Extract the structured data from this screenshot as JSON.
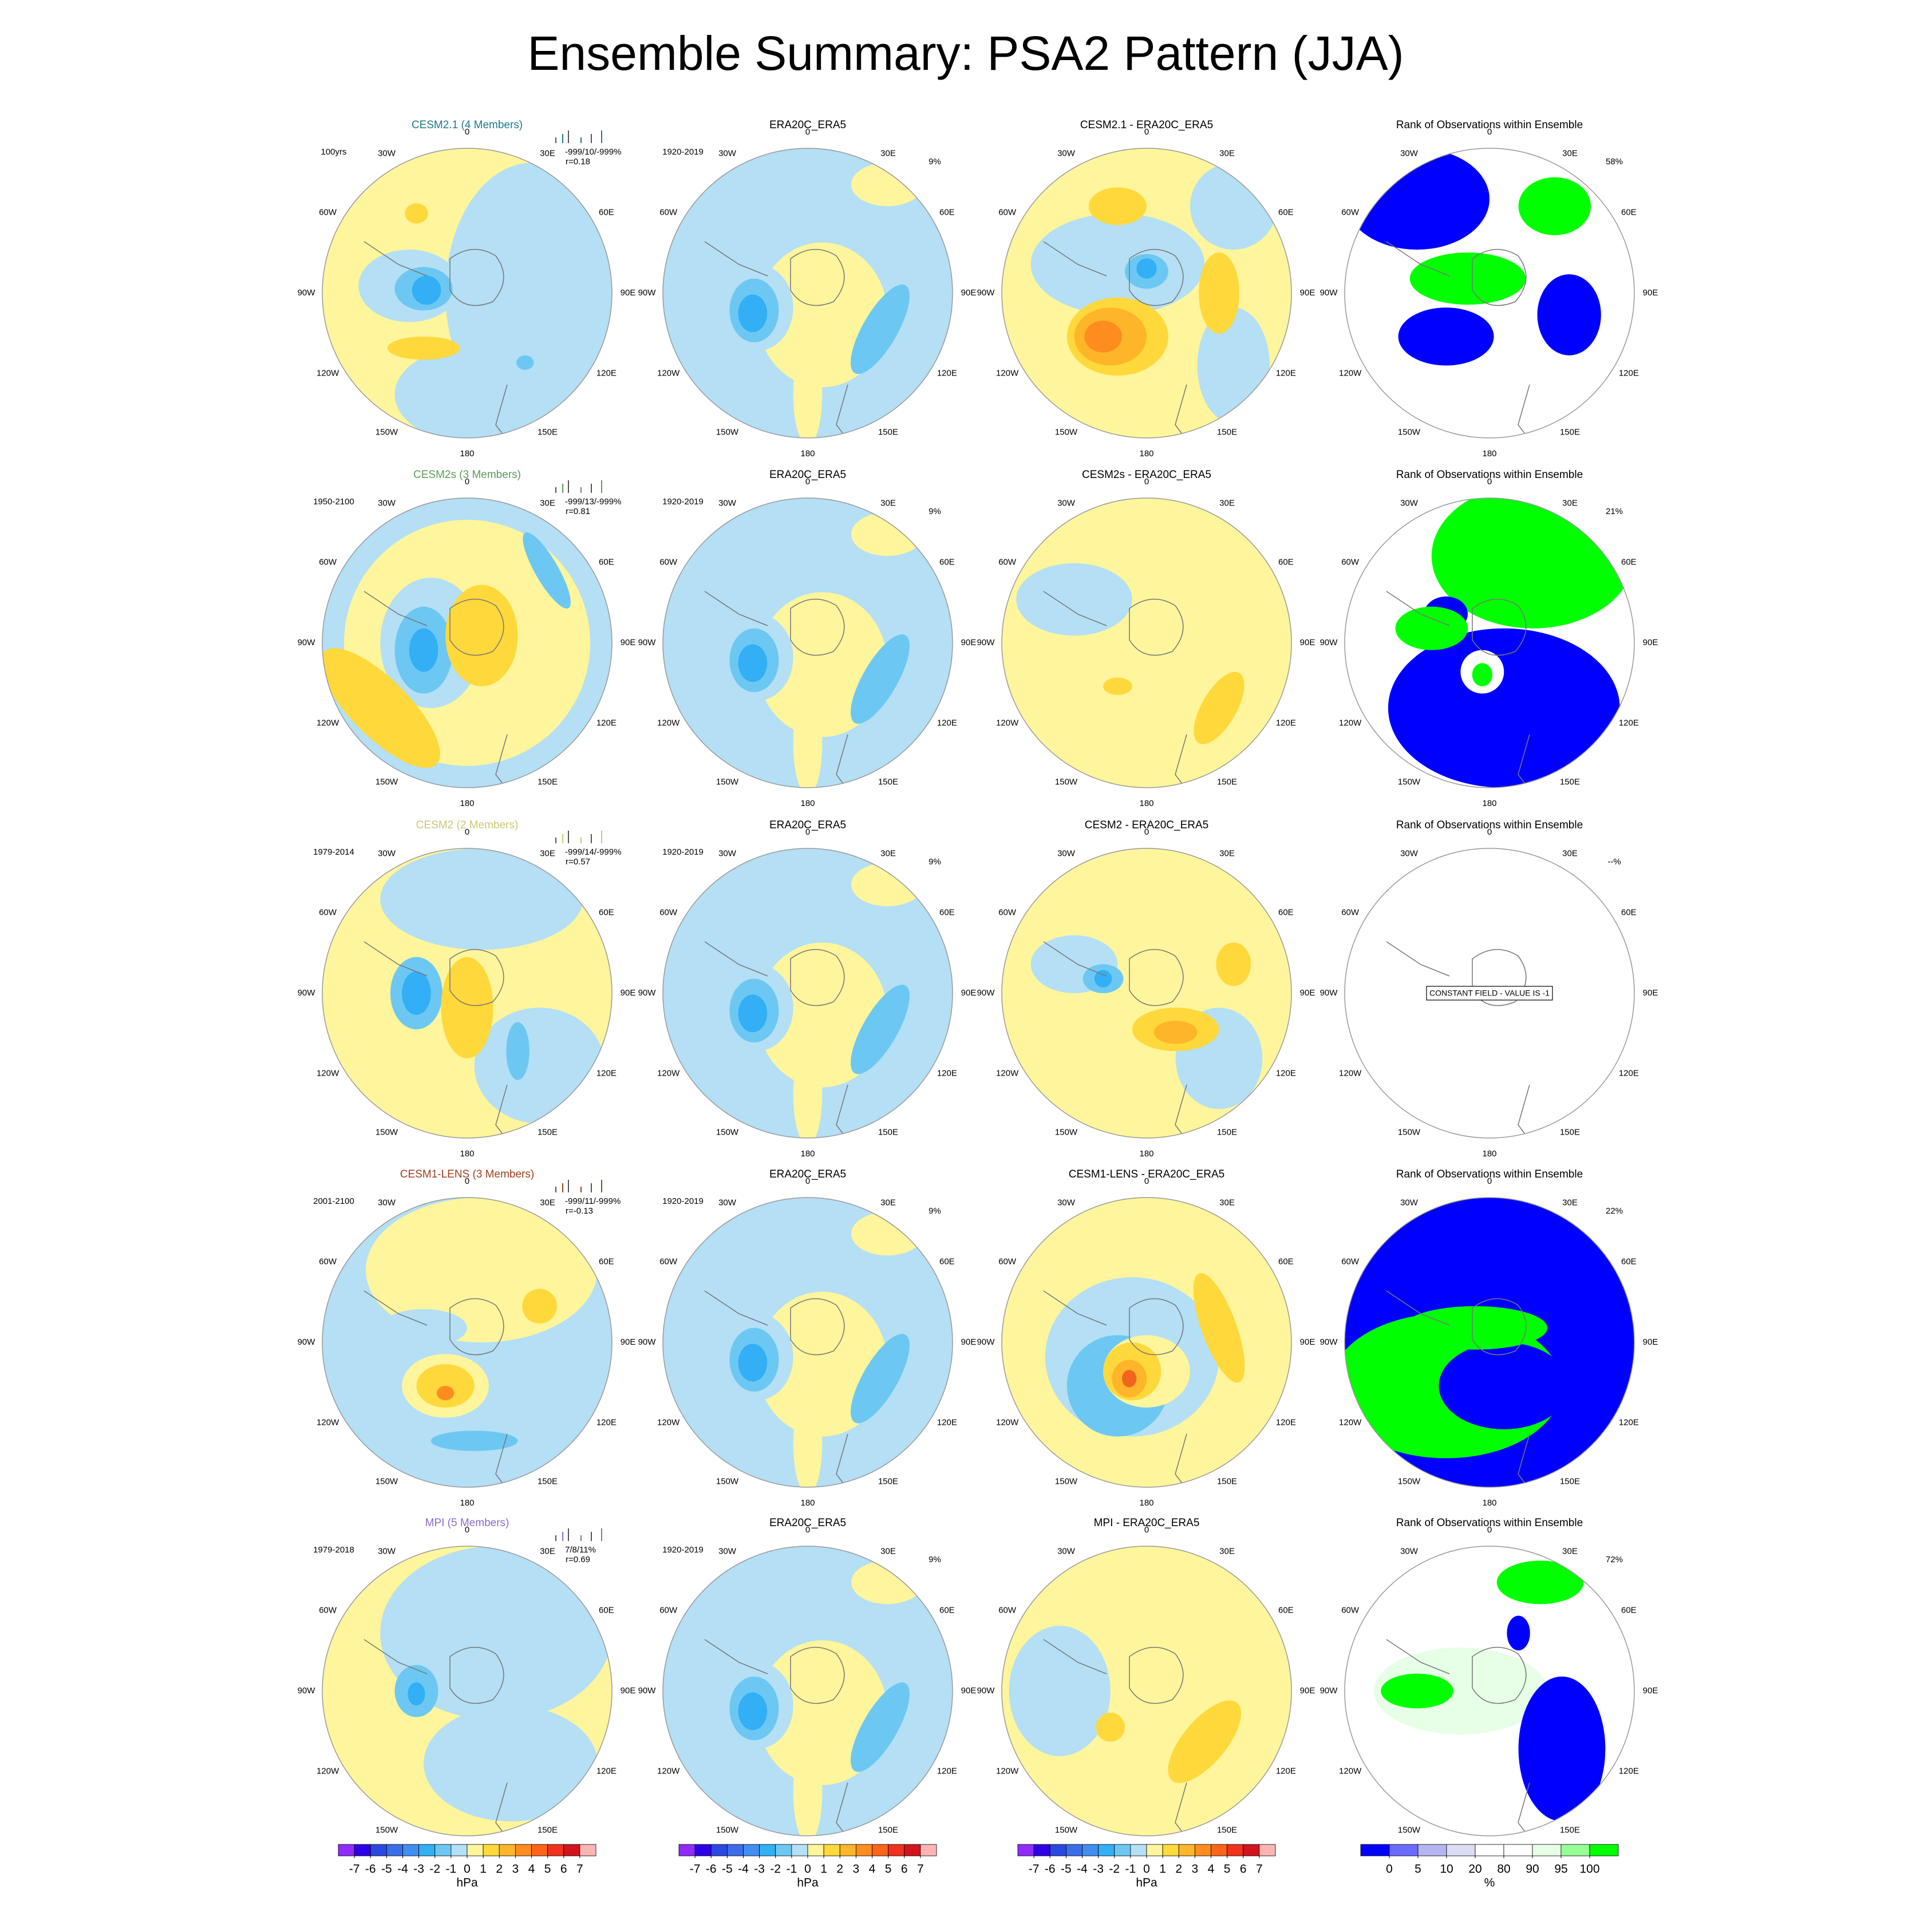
{
  "title": "Ensemble Summary: PSA2 Pattern (JJA)",
  "longitude_labels": [
    "0",
    "30E",
    "60E",
    "90E",
    "120E",
    "150E",
    "180",
    "150W",
    "120W",
    "90W",
    "60W",
    "30W"
  ],
  "rows": [
    {
      "model": "CESM2.1 (4 Members)",
      "model_color": "#1f7a8c",
      "period": "100yrs",
      "stats": "-999/10/-999%",
      "corr": "r=0.18",
      "obs_title": "ERA20C_ERA5",
      "obs_period": "1920-2019",
      "obs_pct": "9%",
      "diff_title": "CESM2.1 - ERA20C_ERA5",
      "rank_title": "Rank of Observations within Ensemble",
      "rank_pct": "58%"
    },
    {
      "model": "CESM2s (3 Members)",
      "model_color": "#5a9a5a",
      "period": "1950-2100",
      "stats": "-999/13/-999%",
      "corr": "r=0.81",
      "obs_title": "ERA20C_ERA5",
      "obs_period": "1920-2019",
      "obs_pct": "9%",
      "diff_title": "CESM2s - ERA20C_ERA5",
      "rank_title": "Rank of Observations within Ensemble",
      "rank_pct": "21%"
    },
    {
      "model": "CESM2 (2 Members)",
      "model_color": "#c8c878",
      "period": "1979-2014",
      "stats": "-999/14/-999%",
      "corr": "r=0.57",
      "obs_title": "ERA20C_ERA5",
      "obs_period": "1920-2019",
      "obs_pct": "9%",
      "diff_title": "CESM2 - ERA20C_ERA5",
      "rank_title": "Rank of Observations within Ensemble",
      "rank_pct": "--%",
      "rank_note": "CONSTANT FIELD - VALUE IS -1"
    },
    {
      "model": "CESM1-LENS (3 Members)",
      "model_color": "#a0401e",
      "period": "2001-2100",
      "stats": "-999/11/-999%",
      "corr": "r=-0.13",
      "obs_title": "ERA20C_ERA5",
      "obs_period": "1920-2019",
      "obs_pct": "9%",
      "diff_title": "CESM1-LENS - ERA20C_ERA5",
      "rank_title": "Rank of Observations within Ensemble",
      "rank_pct": "22%"
    },
    {
      "model": "MPI (5 Members)",
      "model_color": "#8a6ad0",
      "period": "1979-2018",
      "stats": "7/8/11%",
      "corr": "r=0.69",
      "obs_title": "ERA20C_ERA5",
      "obs_period": "1920-2019",
      "obs_pct": "9%",
      "diff_title": "MPI - ERA20C_ERA5",
      "rank_title": "Rank of Observations within Ensemble",
      "rank_pct": "72%"
    }
  ],
  "colorbar_hpa": {
    "colors": [
      "#8f2bff",
      "#2d00e6",
      "#2a49e0",
      "#3a6ee8",
      "#3f8ef0",
      "#32aff5",
      "#6cc8f2",
      "#b4dff5",
      "#fff59c",
      "#ffd83c",
      "#ffb52a",
      "#ff8c1e",
      "#ff6419",
      "#f0321e",
      "#d2141e",
      "#ffb4b4"
    ],
    "ticks": [
      -7,
      -6,
      -5,
      -4,
      -3,
      -2,
      -1,
      0,
      1,
      2,
      3,
      4,
      5,
      6,
      7
    ],
    "label": "hPa"
  },
  "colorbar_rank": {
    "colors": [
      "#0000ff",
      "#6b6bff",
      "#b4b4f0",
      "#dcdcf5",
      "#ffffff",
      "#ffffff",
      "#e6ffe6",
      "#96ff96",
      "#00ff00"
    ],
    "ticks": [
      0,
      5,
      10,
      20,
      80,
      90,
      95,
      100
    ],
    "label": "%"
  }
}
